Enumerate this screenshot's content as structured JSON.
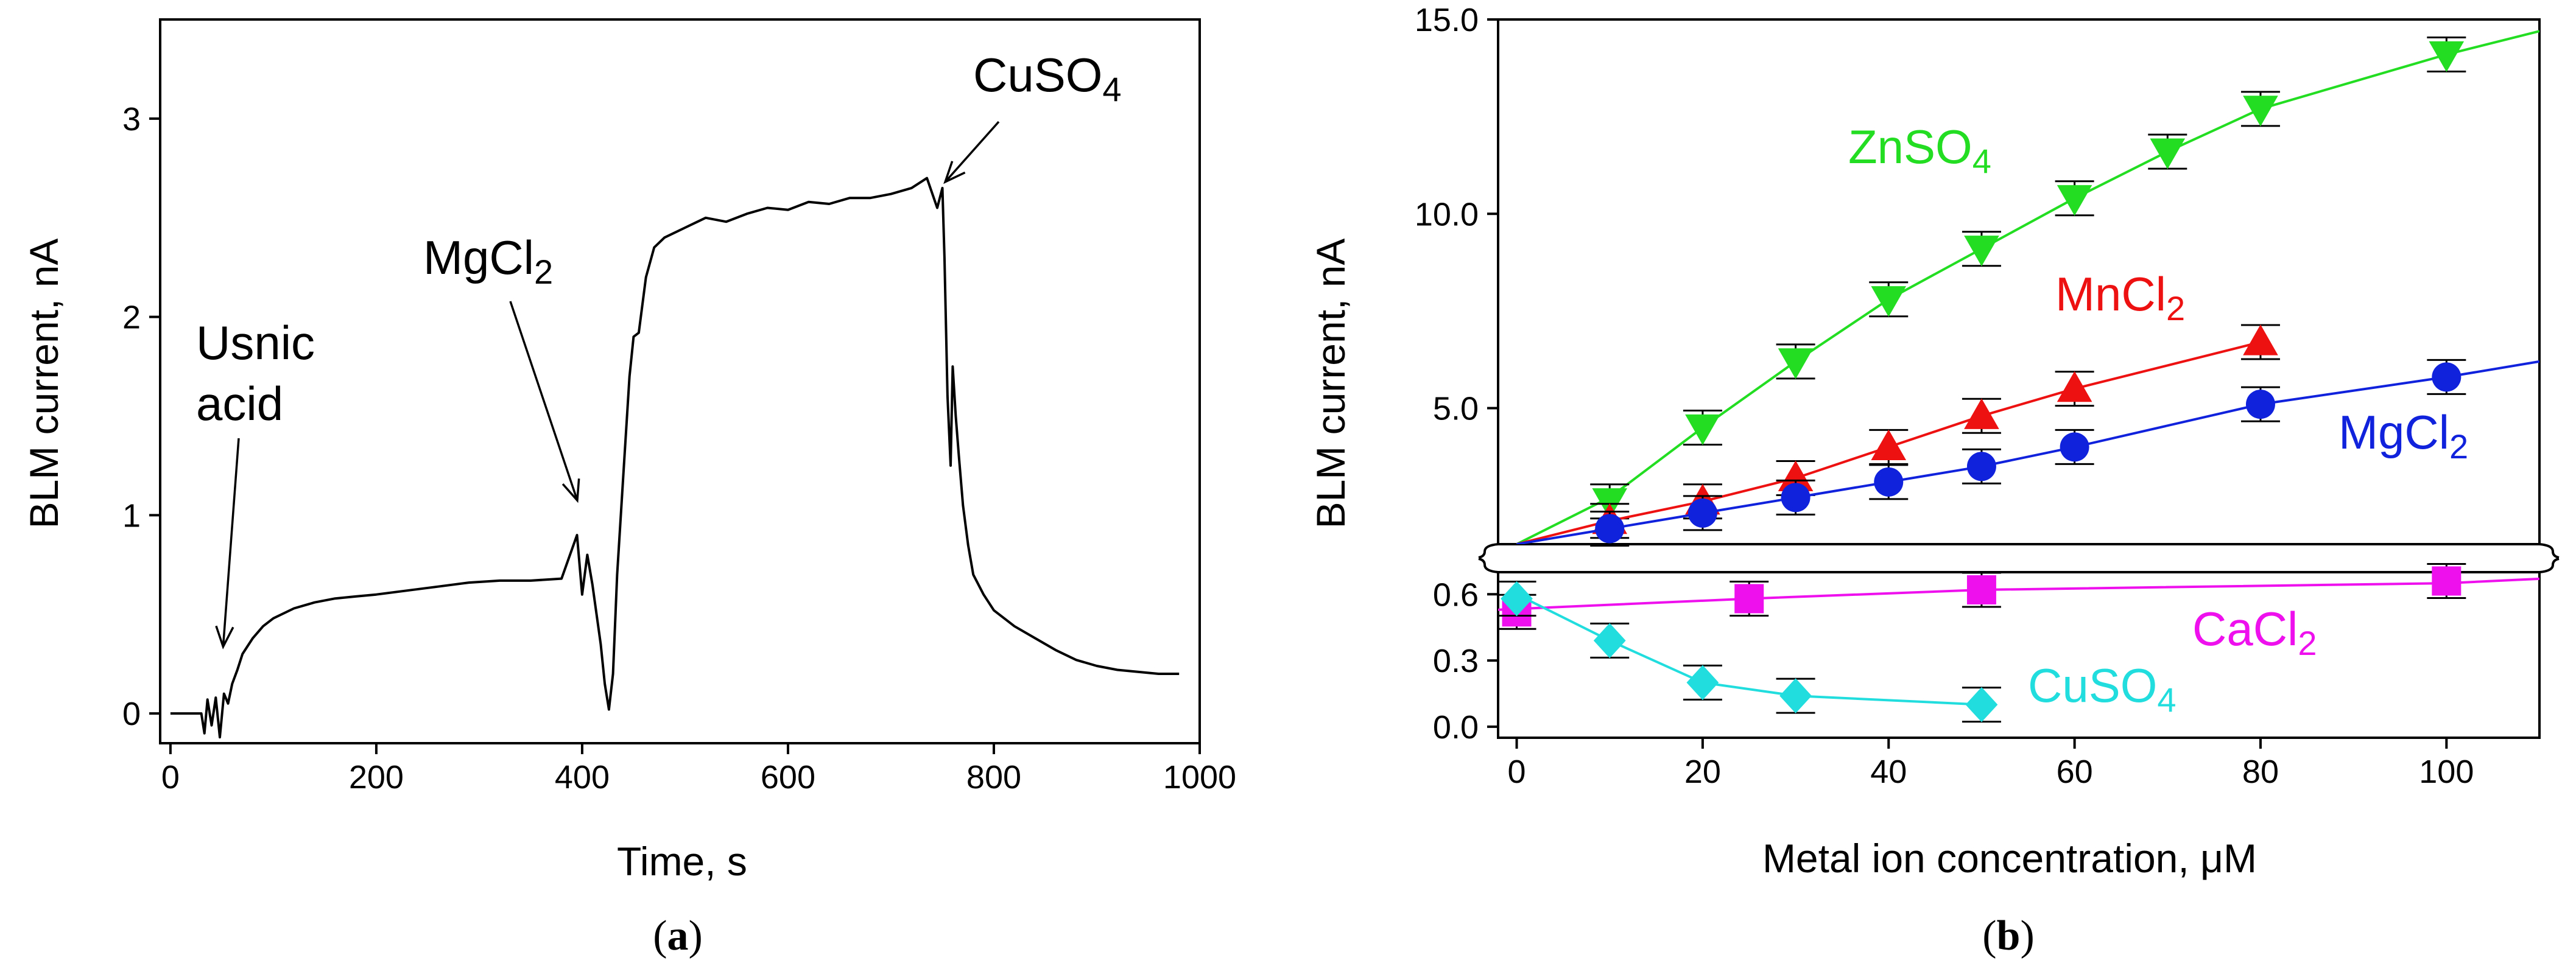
{
  "chart_data": [
    {
      "type": "line",
      "panel_label": {
        "open": "(",
        "letter": "a",
        "close": ")"
      },
      "xlabel": "Time, s",
      "ylabel": "BLM current, nA",
      "xlim": [
        -10,
        1000
      ],
      "ylim": [
        -0.15,
        3.5
      ],
      "xticks": [
        "0",
        "200",
        "400",
        "600",
        "800",
        "1000"
      ],
      "yticks": [
        "0",
        "1",
        "2",
        "3"
      ],
      "trace": {
        "x": [
          0,
          30,
          33,
          36,
          40,
          44,
          48,
          52,
          56,
          60,
          65,
          70,
          80,
          90,
          100,
          120,
          140,
          160,
          180,
          200,
          230,
          260,
          290,
          320,
          350,
          380,
          395,
          400,
          405,
          410,
          414,
          418,
          422,
          426,
          430,
          434,
          440,
          446,
          450,
          455,
          462,
          470,
          480,
          500,
          520,
          540,
          560,
          580,
          600,
          620,
          640,
          660,
          680,
          700,
          720,
          735,
          745,
          750,
          752,
          755,
          758,
          760,
          763,
          766,
          770,
          775,
          780,
          790,
          800,
          820,
          840,
          860,
          880,
          900,
          920,
          940,
          960,
          980
        ],
        "y": [
          0,
          0,
          -0.1,
          0.07,
          -0.06,
          0.08,
          -0.12,
          0.1,
          0.05,
          0.15,
          0.22,
          0.3,
          0.38,
          0.44,
          0.48,
          0.53,
          0.56,
          0.58,
          0.59,
          0.6,
          0.62,
          0.64,
          0.66,
          0.67,
          0.67,
          0.68,
          0.9,
          0.6,
          0.8,
          0.65,
          0.5,
          0.35,
          0.15,
          0.02,
          0.2,
          0.7,
          1.2,
          1.7,
          1.9,
          1.92,
          2.2,
          2.35,
          2.4,
          2.45,
          2.5,
          2.48,
          2.52,
          2.55,
          2.54,
          2.58,
          2.57,
          2.6,
          2.6,
          2.62,
          2.65,
          2.7,
          2.55,
          2.65,
          2.3,
          1.6,
          1.25,
          1.75,
          1.5,
          1.3,
          1.05,
          0.85,
          0.7,
          0.6,
          0.52,
          0.44,
          0.38,
          0.32,
          0.27,
          0.24,
          0.22,
          0.21,
          0.2,
          0.2
        ]
      },
      "annotations": [
        {
          "label": "Usnic",
          "label2": "acid",
          "x": 50,
          "y": 0.3
        },
        {
          "label": "MgCl",
          "sub": "2",
          "x": 400,
          "y": 1.05
        },
        {
          "label": "CuSO",
          "sub": "4",
          "x": 748,
          "y": 2.65
        }
      ]
    },
    {
      "type": "line",
      "panel_label": {
        "open": "(",
        "letter": "b",
        "close": ")"
      },
      "xlabel": "Metal ion concentration, μM",
      "ylabel": "BLM current, nA",
      "xlim": [
        -2,
        110
      ],
      "broken_axis": true,
      "ylim_lower": [
        -0.05,
        0.7
      ],
      "ylim_upper": [
        1.5,
        15.0
      ],
      "yticks_lower": [
        "0.0",
        "0.3",
        "0.6"
      ],
      "yticks_upper": [
        "5.0",
        "10.0",
        "15.0"
      ],
      "xticks": [
        "0",
        "20",
        "40",
        "60",
        "80",
        "100"
      ],
      "series": [
        {
          "name": "ZnSO",
          "sub": "4",
          "color": "#22dd22",
          "marker": "triangle-down",
          "segment": "upper",
          "x": [
            10,
            20,
            30,
            40,
            50,
            60,
            70,
            80,
            100
          ],
          "y": [
            2.6,
            4.5,
            6.2,
            7.8,
            9.1,
            10.4,
            11.6,
            12.7,
            14.1
          ],
          "line_x": [
            0,
            10,
            20,
            30,
            40,
            50,
            60,
            70,
            80,
            100,
            110
          ],
          "line_y": [
            1.5,
            2.7,
            4.5,
            6.2,
            7.8,
            9.1,
            10.4,
            11.6,
            12.7,
            14.1,
            14.7
          ]
        },
        {
          "name": "MnCl",
          "sub": "2",
          "color": "#ee1111",
          "marker": "triangle-up",
          "segment": "upper",
          "x": [
            10,
            20,
            30,
            40,
            50,
            60,
            80
          ],
          "y": [
            2.1,
            2.6,
            3.2,
            4.0,
            4.8,
            5.5,
            6.7
          ],
          "line_x": [
            0,
            10,
            20,
            30,
            40,
            50,
            60,
            80
          ],
          "line_y": [
            1.5,
            2.1,
            2.6,
            3.2,
            4.0,
            4.8,
            5.5,
            6.7
          ]
        },
        {
          "name": "MgCl",
          "sub": "2",
          "color": "#1122dd",
          "marker": "circle",
          "segment": "upper",
          "x": [
            10,
            20,
            30,
            40,
            50,
            60,
            80,
            100
          ],
          "y": [
            1.9,
            2.3,
            2.7,
            3.1,
            3.5,
            4.0,
            5.1,
            5.8
          ],
          "line_x": [
            0,
            10,
            20,
            30,
            40,
            50,
            60,
            80,
            100,
            110
          ],
          "line_y": [
            1.5,
            1.9,
            2.3,
            2.7,
            3.1,
            3.5,
            4.0,
            5.1,
            5.8,
            6.2
          ]
        },
        {
          "name": "CaCl",
          "sub": "2",
          "color": "#ee11ee",
          "marker": "square",
          "segment": "lower",
          "x": [
            0,
            25,
            50,
            100
          ],
          "y": [
            0.52,
            0.58,
            0.62,
            0.66
          ],
          "line_x": [
            -2,
            25,
            50,
            100,
            110
          ],
          "line_y": [
            0.53,
            0.58,
            0.62,
            0.65,
            0.67
          ]
        },
        {
          "name": "CuSO",
          "sub": "4",
          "color": "#22dddd",
          "marker": "diamond",
          "segment": "lower",
          "x": [
            0,
            10,
            20,
            30,
            50
          ],
          "y": [
            0.58,
            0.39,
            0.2,
            0.14,
            0.1
          ],
          "line_x": [
            0,
            10,
            20,
            30,
            50
          ],
          "line_y": [
            0.6,
            0.39,
            0.2,
            0.14,
            0.1
          ]
        }
      ]
    }
  ]
}
